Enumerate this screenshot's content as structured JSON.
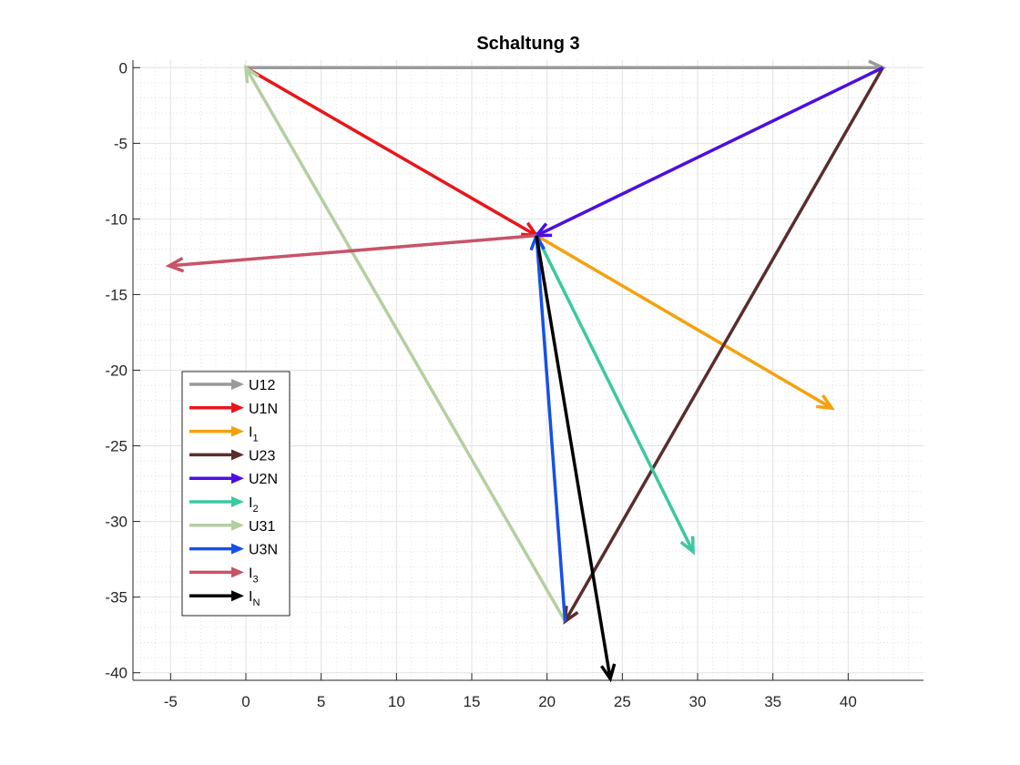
{
  "chart_data": {
    "type": "quiver",
    "title": "Schaltung 3",
    "xlabel": "",
    "ylabel": "",
    "xlim": [
      -7.5,
      45
    ],
    "ylim": [
      -40.5,
      0.5
    ],
    "xticks": [
      -5,
      0,
      5,
      10,
      15,
      20,
      25,
      30,
      35,
      40
    ],
    "yticks": [
      0,
      -5,
      -10,
      -15,
      -20,
      -25,
      -30,
      -35,
      -40
    ],
    "grid": true,
    "minor_grid": true,
    "legend_position": "lower-left",
    "series": [
      {
        "name": "U12",
        "label_main": "U12",
        "label_sub": "",
        "color": "#9a9a9a",
        "from": [
          0,
          0
        ],
        "to": [
          42.3,
          0
        ]
      },
      {
        "name": "U1N",
        "label_main": "U1N",
        "label_sub": "",
        "color": "#e8161b",
        "from": [
          0,
          0
        ],
        "to": [
          19.3,
          -11.1
        ]
      },
      {
        "name": "I1",
        "label_main": "I",
        "label_sub": "1",
        "color": "#f5a10d",
        "from": [
          19.3,
          -11.1
        ],
        "to": [
          38.9,
          -22.5
        ]
      },
      {
        "name": "U23",
        "label_main": "U23",
        "label_sub": "",
        "color": "#5a2d2d",
        "from": [
          42.3,
          0
        ],
        "to": [
          21.2,
          -36.6
        ]
      },
      {
        "name": "U2N",
        "label_main": "U2N",
        "label_sub": "",
        "color": "#4b0fe0",
        "from": [
          42.3,
          0
        ],
        "to": [
          19.3,
          -11.1
        ]
      },
      {
        "name": "I2",
        "label_main": "I",
        "label_sub": "2",
        "color": "#3cc8a0",
        "from": [
          19.3,
          -11.1
        ],
        "to": [
          29.7,
          -32.0
        ]
      },
      {
        "name": "U31",
        "label_main": "U31",
        "label_sub": "",
        "color": "#b4cfa0",
        "from": [
          21.2,
          -36.6
        ],
        "to": [
          0,
          0
        ]
      },
      {
        "name": "U3N",
        "label_main": "U3N",
        "label_sub": "",
        "color": "#1650e6",
        "from": [
          21.2,
          -36.6
        ],
        "to": [
          19.3,
          -11.1
        ]
      },
      {
        "name": "I3",
        "label_main": "I",
        "label_sub": "3",
        "color": "#c85368",
        "from": [
          19.3,
          -11.1
        ],
        "to": [
          -5.1,
          -13.1
        ]
      },
      {
        "name": "IN",
        "label_main": "I",
        "label_sub": "N",
        "color": "#000000",
        "from": [
          19.3,
          -11.1
        ],
        "to": [
          24.2,
          -40.4
        ]
      }
    ]
  }
}
